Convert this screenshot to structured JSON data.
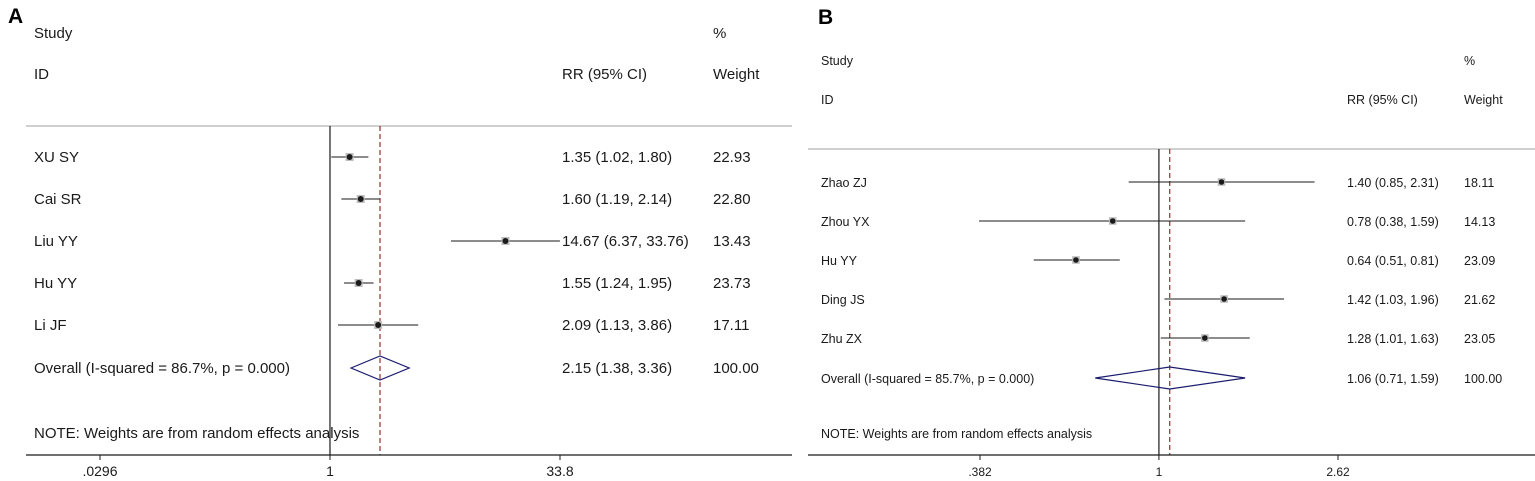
{
  "chart_data": [
    {
      "type": "forest",
      "panel_label": "A",
      "headers": {
        "study_line1": "Study",
        "study_line2": "ID",
        "effect": "RR (95% CI)",
        "weight_line1": "%",
        "weight_line2": "Weight"
      },
      "studies": [
        {
          "id": "XU SY",
          "rr": 1.35,
          "lo": 1.02,
          "hi": 1.8,
          "ci_text": "1.35 (1.02, 1.80)",
          "weight": "22.93"
        },
        {
          "id": "Cai SR",
          "rr": 1.6,
          "lo": 1.19,
          "hi": 2.14,
          "ci_text": "1.60 (1.19, 2.14)",
          "weight": "22.80"
        },
        {
          "id": "Liu YY",
          "rr": 14.67,
          "lo": 6.37,
          "hi": 33.76,
          "ci_text": "14.67 (6.37, 33.76)",
          "weight": "13.43"
        },
        {
          "id": "Hu YY",
          "rr": 1.55,
          "lo": 1.24,
          "hi": 1.95,
          "ci_text": "1.55 (1.24, 1.95)",
          "weight": "23.73"
        },
        {
          "id": "Li JF",
          "rr": 2.09,
          "lo": 1.13,
          "hi": 3.86,
          "ci_text": "2.09 (1.13, 3.86)",
          "weight": "17.11"
        }
      ],
      "overall": {
        "label": "Overall  (I-squared = 86.7%, p = 0.000)",
        "rr": 2.15,
        "lo": 1.38,
        "hi": 3.36,
        "ci_text": "2.15 (1.38, 3.36)",
        "weight": "100.00"
      },
      "note": "NOTE: Weights are from random effects analysis",
      "x_scale": "log",
      "x_ticks": [
        {
          "value": 0.0296,
          "label": ".0296"
        },
        {
          "value": 1,
          "label": "1"
        },
        {
          "value": 33.8,
          "label": "33.8"
        }
      ],
      "null_line": 1
    },
    {
      "type": "forest",
      "panel_label": "B",
      "headers": {
        "study_line1": "Study",
        "study_line2": "ID",
        "effect": "RR (95% CI)",
        "weight_line1": "%",
        "weight_line2": "Weight"
      },
      "studies": [
        {
          "id": "Zhao ZJ",
          "rr": 1.4,
          "lo": 0.85,
          "hi": 2.31,
          "ci_text": "1.40 (0.85, 2.31)",
          "weight": "18.11"
        },
        {
          "id": "Zhou YX",
          "rr": 0.78,
          "lo": 0.38,
          "hi": 1.59,
          "ci_text": "0.78 (0.38, 1.59)",
          "weight": "14.13"
        },
        {
          "id": "Hu YY",
          "rr": 0.64,
          "lo": 0.51,
          "hi": 0.81,
          "ci_text": "0.64 (0.51, 0.81)",
          "weight": "23.09"
        },
        {
          "id": "Ding JS",
          "rr": 1.42,
          "lo": 1.03,
          "hi": 1.96,
          "ci_text": "1.42 (1.03, 1.96)",
          "weight": "21.62"
        },
        {
          "id": "Zhu ZX",
          "rr": 1.28,
          "lo": 1.01,
          "hi": 1.63,
          "ci_text": "1.28 (1.01, 1.63)",
          "weight": "23.05"
        }
      ],
      "overall": {
        "label": "Overall  (I-squared = 85.7%, p = 0.000)",
        "rr": 1.06,
        "lo": 0.71,
        "hi": 1.59,
        "ci_text": "1.06 (0.71, 1.59)",
        "weight": "100.00"
      },
      "note": "NOTE: Weights are from random effects analysis",
      "x_scale": "log",
      "x_ticks": [
        {
          "value": 0.382,
          "label": ".382"
        },
        {
          "value": 1,
          "label": "1"
        },
        {
          "value": 2.62,
          "label": "2.62"
        }
      ],
      "null_line": 1
    }
  ],
  "colors": {
    "ink": "#1a1a1a",
    "divider": "#a0a0a0",
    "pooled_line": "#8b1a1a",
    "diamond": "#1a1a6e"
  }
}
